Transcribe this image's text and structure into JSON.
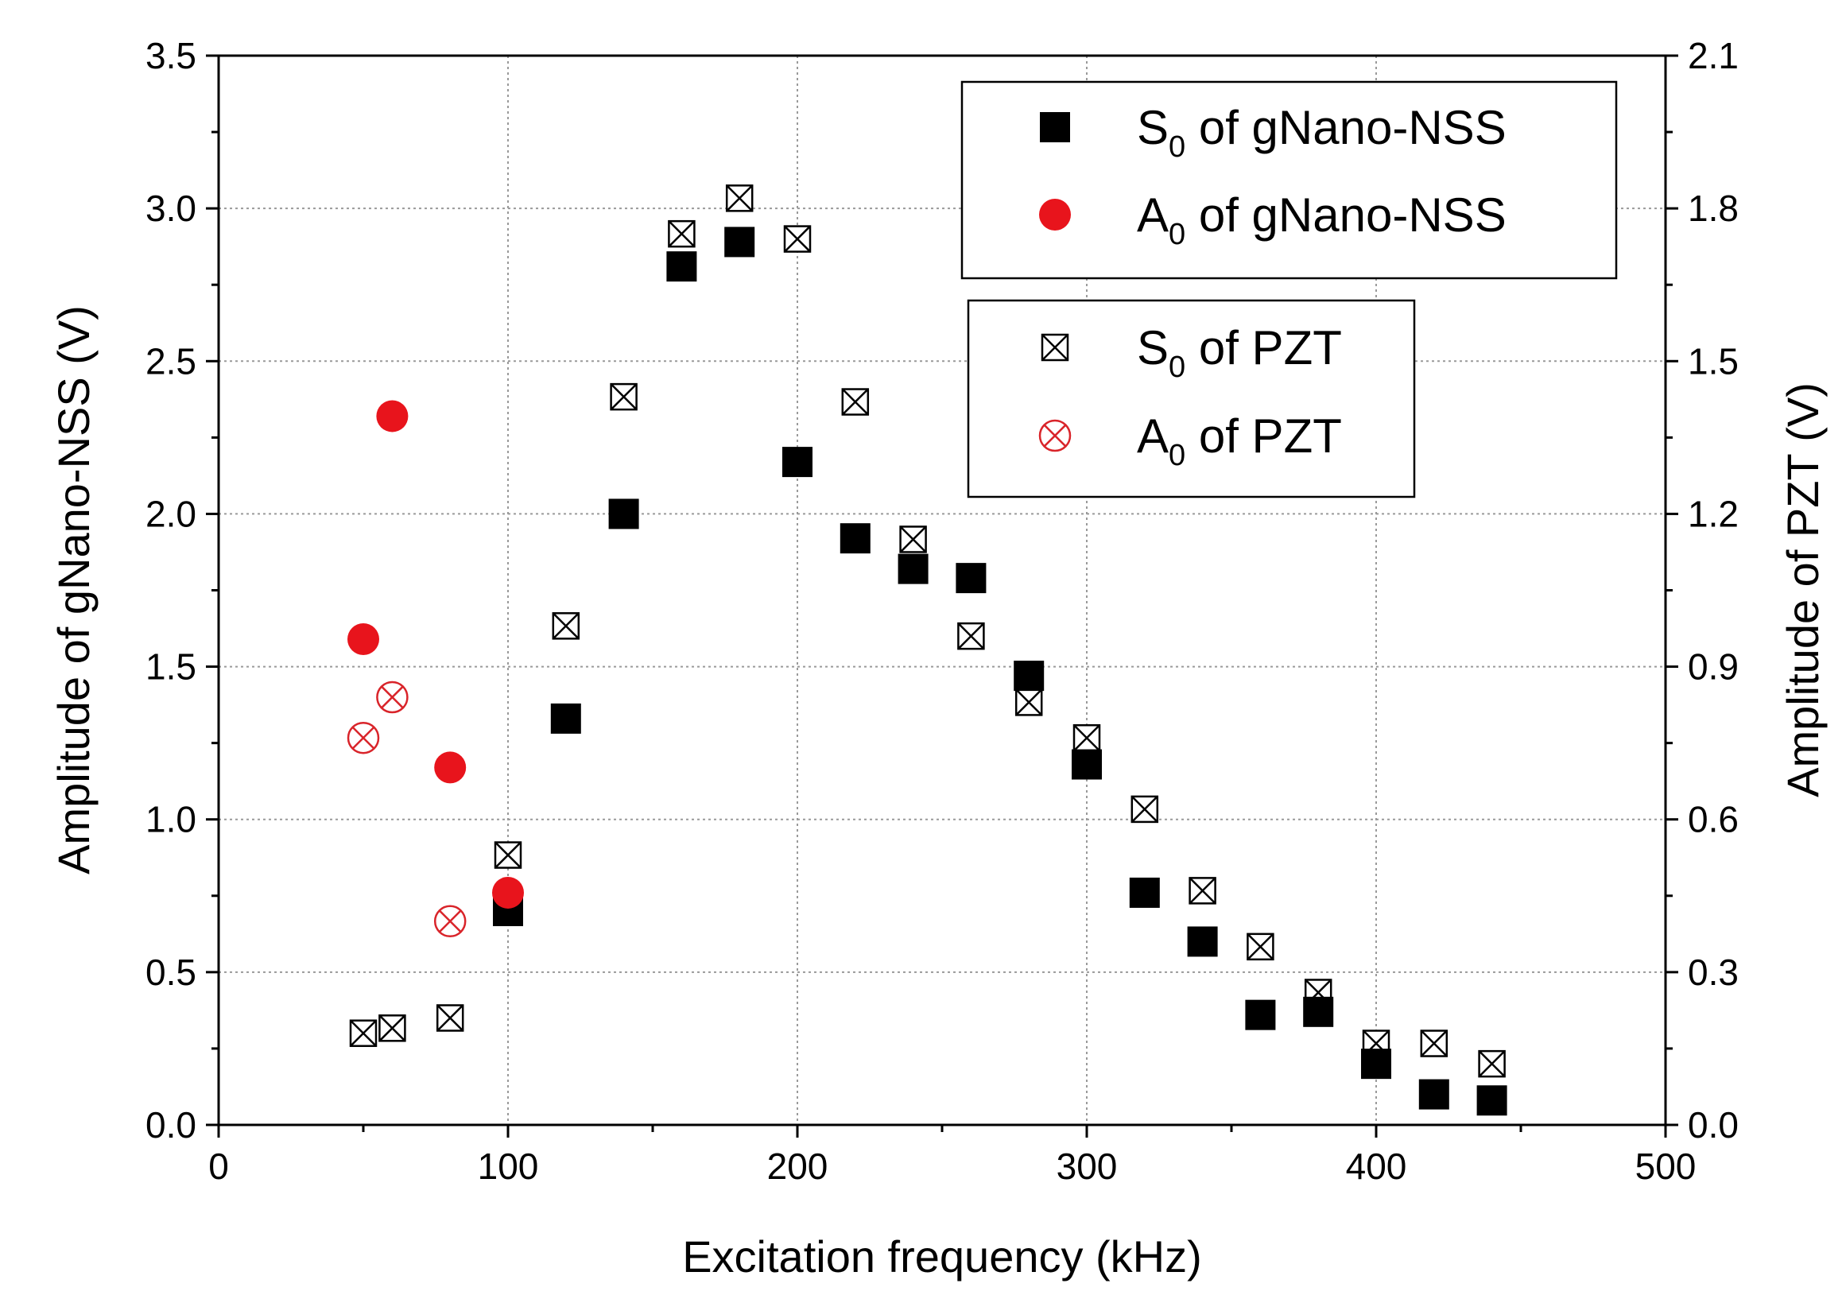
{
  "chart_data": {
    "type": "scatter",
    "xlabel": "Excitation frequency (kHz)",
    "ylabel_left": "Amplitude of gNano-NSS (V)",
    "ylabel_right": "Amplitude of PZT (V)",
    "xlim": [
      0,
      500
    ],
    "ylim_left": [
      0,
      3.5
    ],
    "ylim_right": [
      0,
      2.1
    ],
    "x_ticks": [
      "0",
      "100",
      "200",
      "300",
      "400",
      "500"
    ],
    "y_left_ticks": [
      "0.0",
      "0.5",
      "1.0",
      "1.5",
      "2.0",
      "2.5",
      "3.0",
      "3.5"
    ],
    "y_right_ticks": [
      "0.0",
      "0.3",
      "0.6",
      "0.9",
      "1.2",
      "1.5",
      "1.8",
      "2.1"
    ],
    "grid": true,
    "series": [
      {
        "name": "S0 of gNano-NSS",
        "legend_main": "S",
        "legend_sub": "0",
        "legend_rest": " of gNano-NSS",
        "axis": "left",
        "marker": "filled-square",
        "color": "#000000",
        "x": [
          100,
          120,
          140,
          160,
          180,
          200,
          220,
          240,
          260,
          280,
          300,
          320,
          340,
          360,
          380,
          400,
          420,
          440
        ],
        "y": [
          0.7,
          1.33,
          2.0,
          2.81,
          2.89,
          2.17,
          1.92,
          1.82,
          1.79,
          1.47,
          1.18,
          0.76,
          0.6,
          0.36,
          0.37,
          0.2,
          0.1,
          0.08
        ]
      },
      {
        "name": "A0 of gNano-NSS",
        "legend_main": "A",
        "legend_sub": "0",
        "legend_rest": " of gNano-NSS",
        "axis": "left",
        "marker": "filled-circle",
        "color": "#e8141c",
        "x": [
          50,
          60,
          80,
          100
        ],
        "y": [
          1.59,
          2.32,
          1.17,
          0.76
        ]
      },
      {
        "name": "S0 of PZT",
        "legend_main": "S",
        "legend_sub": "0",
        "legend_rest": " of PZT",
        "axis": "right",
        "marker": "square-x",
        "color": "#000000",
        "x": [
          50,
          60,
          80,
          100,
          120,
          140,
          160,
          180,
          200,
          220,
          240,
          260,
          280,
          300,
          320,
          340,
          360,
          380,
          400,
          420,
          440
        ],
        "y": [
          0.18,
          0.19,
          0.21,
          0.53,
          0.98,
          1.43,
          1.75,
          1.82,
          1.74,
          1.42,
          1.15,
          0.96,
          0.83,
          0.76,
          0.62,
          0.46,
          0.35,
          0.26,
          0.16,
          0.16,
          0.12
        ]
      },
      {
        "name": "A0 of PZT",
        "legend_main": "A",
        "legend_sub": "0",
        "legend_rest": " of PZT",
        "axis": "right",
        "marker": "circle-x",
        "color": "#d9242a",
        "x": [
          50,
          60,
          80
        ],
        "y": [
          0.76,
          0.84,
          0.4
        ]
      }
    ]
  }
}
